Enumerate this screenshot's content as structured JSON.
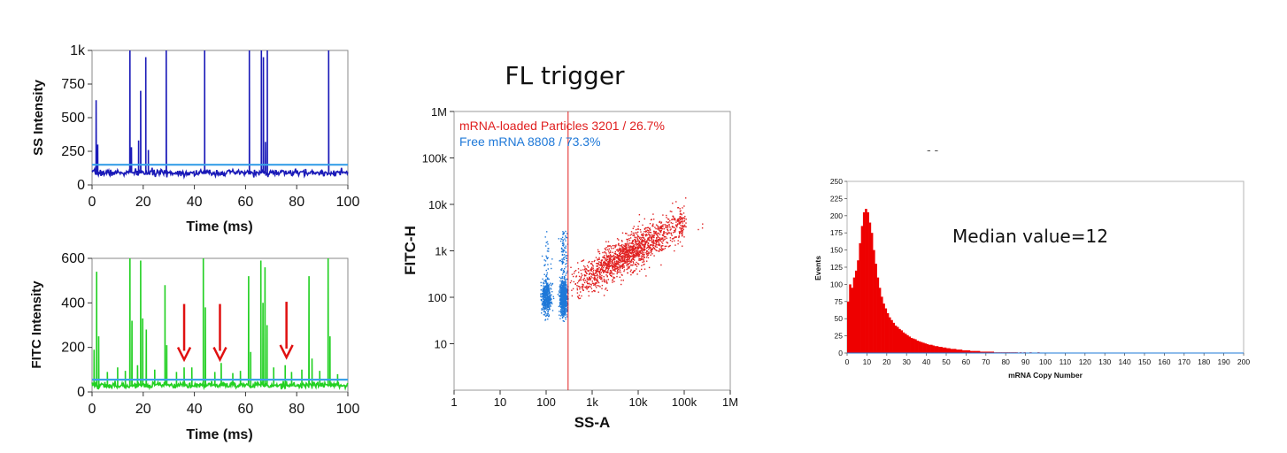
{
  "chart_data": [
    {
      "id": "ss",
      "type": "line",
      "xlabel": "Time (ms)",
      "ylabel": "SS Intensity",
      "xlim": [
        0,
        100
      ],
      "ylim": [
        0,
        1000
      ],
      "x_ticks": [
        0,
        20,
        40,
        60,
        80,
        100
      ],
      "x_tick_labels": [
        "0",
        "20",
        "40",
        "60",
        "80",
        "100"
      ],
      "y_ticks": [
        0,
        250,
        500,
        750,
        1000
      ],
      "y_tick_labels": [
        "0",
        "250",
        "500",
        "750",
        "1k"
      ],
      "baseline": 90,
      "threshold": 150,
      "colors": {
        "trace": "#1a1ab8",
        "threshold": "#3aa0e8"
      },
      "peaks": [
        {
          "x": 1.6,
          "y": 630
        },
        {
          "x": 2.2,
          "y": 300
        },
        {
          "x": 14.8,
          "y": 1000
        },
        {
          "x": 15.4,
          "y": 280
        },
        {
          "x": 18.2,
          "y": 330
        },
        {
          "x": 19.0,
          "y": 700
        },
        {
          "x": 21.0,
          "y": 950
        },
        {
          "x": 22.0,
          "y": 260
        },
        {
          "x": 29.0,
          "y": 1000
        },
        {
          "x": 44.0,
          "y": 1000
        },
        {
          "x": 61.5,
          "y": 1000
        },
        {
          "x": 66.2,
          "y": 1000
        },
        {
          "x": 67.0,
          "y": 950
        },
        {
          "x": 67.8,
          "y": 320
        },
        {
          "x": 68.5,
          "y": 1000
        },
        {
          "x": 92.5,
          "y": 1000
        }
      ]
    },
    {
      "id": "fitc",
      "type": "line",
      "xlabel": "Time (ms)",
      "ylabel": "FITC Intensity",
      "xlim": [
        0,
        100
      ],
      "ylim": [
        0,
        600
      ],
      "x_ticks": [
        0,
        20,
        40,
        60,
        80,
        100
      ],
      "x_tick_labels": [
        "0",
        "20",
        "40",
        "60",
        "80",
        "100"
      ],
      "y_ticks": [
        0,
        200,
        400,
        600
      ],
      "y_tick_labels": [
        "0",
        "200",
        "400",
        "600"
      ],
      "baseline": 30,
      "threshold": 55,
      "colors": {
        "trace": "#22d022",
        "threshold": "#3aa0e8",
        "arrow": "#e01010"
      },
      "peaks": [
        {
          "x": 0.8,
          "y": 190
        },
        {
          "x": 1.8,
          "y": 540
        },
        {
          "x": 2.6,
          "y": 250
        },
        {
          "x": 6.0,
          "y": 90
        },
        {
          "x": 10.0,
          "y": 110
        },
        {
          "x": 13.0,
          "y": 95
        },
        {
          "x": 14.8,
          "y": 600
        },
        {
          "x": 15.6,
          "y": 320
        },
        {
          "x": 17.8,
          "y": 120
        },
        {
          "x": 19.0,
          "y": 590
        },
        {
          "x": 19.8,
          "y": 330
        },
        {
          "x": 21.2,
          "y": 280
        },
        {
          "x": 24.5,
          "y": 100
        },
        {
          "x": 28.5,
          "y": 480
        },
        {
          "x": 29.2,
          "y": 210
        },
        {
          "x": 33.0,
          "y": 90
        },
        {
          "x": 36.0,
          "y": 110
        },
        {
          "x": 39.0,
          "y": 110
        },
        {
          "x": 43.5,
          "y": 600
        },
        {
          "x": 44.3,
          "y": 380
        },
        {
          "x": 48.0,
          "y": 90
        },
        {
          "x": 50.5,
          "y": 130
        },
        {
          "x": 55.0,
          "y": 85
        },
        {
          "x": 58.0,
          "y": 95
        },
        {
          "x": 61.2,
          "y": 520
        },
        {
          "x": 62.0,
          "y": 180
        },
        {
          "x": 66.0,
          "y": 590
        },
        {
          "x": 66.8,
          "y": 400
        },
        {
          "x": 67.6,
          "y": 560
        },
        {
          "x": 68.4,
          "y": 300
        },
        {
          "x": 71.0,
          "y": 110
        },
        {
          "x": 75.5,
          "y": 120
        },
        {
          "x": 78.0,
          "y": 90
        },
        {
          "x": 82.0,
          "y": 100
        },
        {
          "x": 84.8,
          "y": 520
        },
        {
          "x": 86.0,
          "y": 150
        },
        {
          "x": 89.0,
          "y": 95
        },
        {
          "x": 92.3,
          "y": 600
        },
        {
          "x": 93.0,
          "y": 250
        },
        {
          "x": 96.0,
          "y": 80
        }
      ],
      "arrows": [
        {
          "x": 36,
          "from_y": 395,
          "to_y": 145
        },
        {
          "x": 50,
          "from_y": 395,
          "to_y": 145
        },
        {
          "x": 76,
          "from_y": 405,
          "to_y": 155
        }
      ]
    },
    {
      "id": "scatter",
      "type": "scatter",
      "title": "FL trigger",
      "xlabel": "SS-A",
      "ylabel": "FITC-H",
      "xscale": "log",
      "yscale": "log",
      "xlim": [
        1,
        1000000
      ],
      "ylim": [
        1,
        1000000
      ],
      "x_ticks": [
        1,
        10,
        100,
        1000,
        10000,
        100000,
        1000000
      ],
      "x_tick_labels": [
        "1",
        "10",
        "100",
        "1k",
        "10k",
        "100k",
        "1M"
      ],
      "y_ticks": [
        10,
        100,
        1000,
        10000,
        100000,
        1000000
      ],
      "y_tick_labels": [
        "10",
        "100",
        "1k",
        "10k",
        "100k",
        "1M"
      ],
      "gate_x": 300,
      "series": [
        {
          "name": "mRNA-loaded Particles",
          "label": "mRNA-loaded Particles  3201 / 26.7%",
          "color": "#e02020",
          "count": 3201,
          "percent": 26.7,
          "cluster": {
            "log_x_center": 3.4,
            "log_y_center": 2.75,
            "log_x_range": [
              2.5,
              5.6
            ],
            "slope": 0.55,
            "spread": 0.2
          }
        },
        {
          "name": "Free mRNA",
          "label": "Free mRNA  8808 / 73.3%",
          "color": "#1e78d8",
          "count": 8808,
          "percent": 73.3,
          "cluster": {
            "log_x_center": 2.25,
            "log_y_center": 2.0,
            "log_x_range": [
              1.85,
              2.45
            ],
            "slope": 0.0,
            "spread": 0.18
          }
        }
      ]
    },
    {
      "id": "histogram",
      "type": "bar",
      "xlabel": "mRNA Copy Number",
      "ylabel": "Events",
      "annotation": "Median value=12",
      "xlim": [
        0,
        200
      ],
      "ylim": [
        0,
        250
      ],
      "x_ticks": [
        0,
        10,
        20,
        30,
        40,
        50,
        60,
        70,
        80,
        90,
        100,
        110,
        120,
        130,
        140,
        150,
        160,
        170,
        180,
        190,
        200
      ],
      "y_ticks": [
        0,
        25,
        50,
        75,
        100,
        125,
        150,
        175,
        200,
        225,
        250
      ],
      "bin_width": 1,
      "color": "#ee0000",
      "values": [
        75,
        100,
        95,
        110,
        120,
        135,
        160,
        185,
        205,
        210,
        205,
        190,
        175,
        150,
        130,
        110,
        95,
        82,
        72,
        65,
        58,
        52,
        48,
        44,
        40,
        38,
        35,
        33,
        30,
        28,
        26,
        24,
        22,
        21,
        20,
        18,
        17,
        16,
        15,
        14,
        13,
        12,
        12,
        11,
        10,
        10,
        9,
        9,
        8,
        8,
        7,
        7,
        6,
        6,
        6,
        5,
        5,
        5,
        4,
        4,
        4,
        4,
        3,
        3,
        3,
        3,
        3,
        2,
        2,
        2,
        2,
        2,
        2,
        2,
        1,
        1,
        1,
        1,
        1,
        1,
        1,
        1,
        1,
        1,
        1,
        1,
        0,
        1,
        0,
        1,
        0,
        0,
        1,
        0,
        0,
        0,
        1,
        0,
        0,
        0
      ]
    }
  ],
  "decor": {
    "stray_marks": "- -"
  }
}
